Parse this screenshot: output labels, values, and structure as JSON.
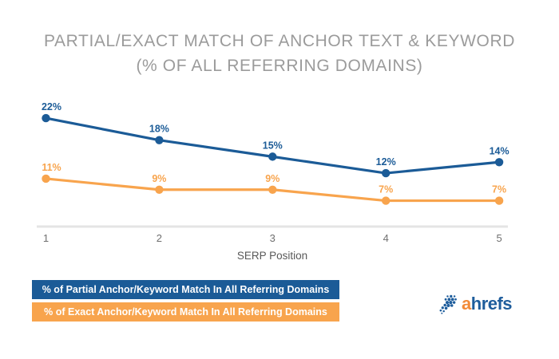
{
  "title": {
    "line1": "PARTIAL/EXACT MATCH OF ANCHOR TEXT & KEYWORD",
    "line2": "(% OF ALL REFERRING DOMAINS)"
  },
  "chart_data": {
    "type": "line",
    "x": [
      1,
      2,
      3,
      4,
      5
    ],
    "xlabel": "SERP Position",
    "series": [
      {
        "name": "% of Partial Anchor/Keyword Match In All Referring Domains",
        "values": [
          22,
          18,
          15,
          12,
          14
        ],
        "color": "#1b5b97"
      },
      {
        "name": "% of Exact Anchor/Keyword Match In All Referring Domains",
        "values": [
          11,
          9,
          9,
          7,
          7
        ],
        "color": "#f8a44d"
      }
    ],
    "label_suffix": "%",
    "data_labels": true,
    "grid": false,
    "ylim": [
      2.3,
      24
    ],
    "axis_color": "#e4e4e4",
    "tick_color": "#6f6f6f",
    "legend_position": "bottom-left"
  },
  "logo": {
    "icon": "ahrefs-dotted-cursor-icon",
    "text_first_letter": "a",
    "text_rest": "hrefs",
    "color_first_letter": "#f28a38",
    "color_rest": "#1e5d9c"
  }
}
